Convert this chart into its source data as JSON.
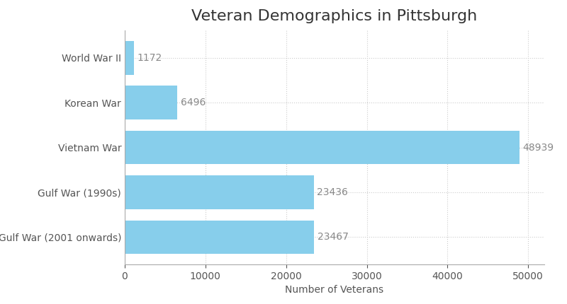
{
  "title": "Veteran Demographics in Pittsburgh",
  "xlabel": "Number of Veterans",
  "categories": [
    "World War II",
    "Korean War",
    "Vietnam War",
    "Gulf War (1990s)",
    "Gulf War (2001 onwards)"
  ],
  "values": [
    1172,
    6496,
    48939,
    23436,
    23467
  ],
  "bar_color": "#87CEEB",
  "label_color": "#888888",
  "title_fontsize": 16,
  "label_fontsize": 10,
  "tick_fontsize": 10,
  "xlim": [
    0,
    52000
  ],
  "background_color": "#ffffff",
  "grid_color": "#cccccc"
}
